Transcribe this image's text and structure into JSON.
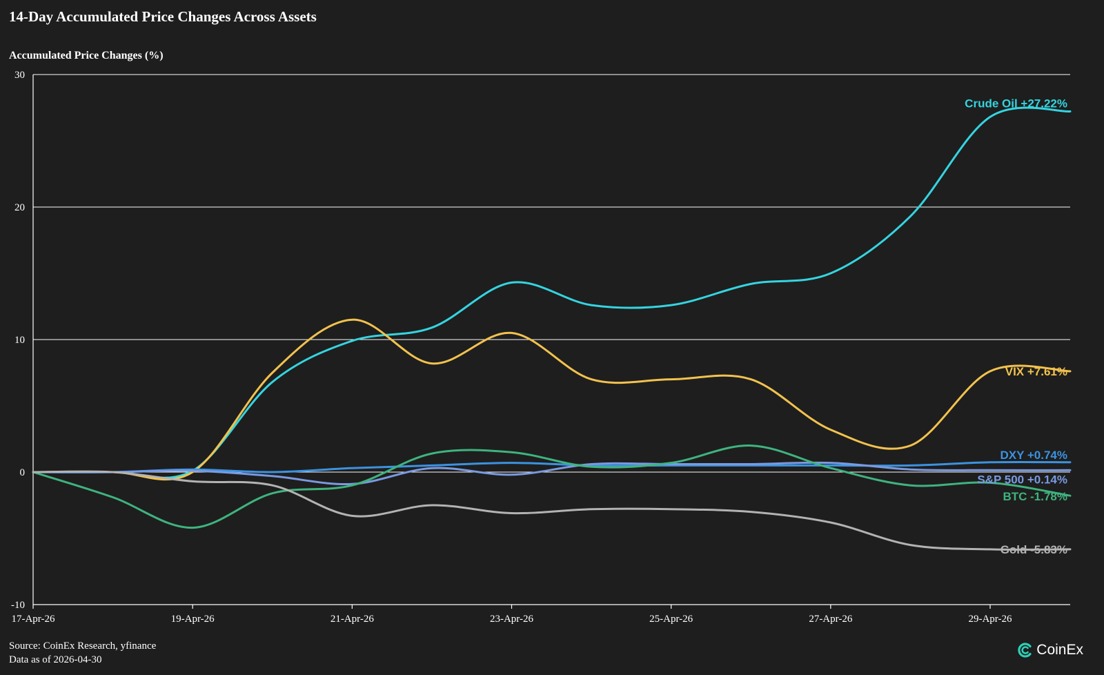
{
  "title": "14-Day Accumulated Price Changes Across Assets",
  "footer": {
    "source": "Source: CoinEx Research, yfinance",
    "asof": "Data as of 2026-04-30"
  },
  "logo": {
    "text": "CoinEx",
    "icon": "coinex-logo-icon",
    "color": "#2ed1b6"
  },
  "chart_data": {
    "type": "line",
    "title": "14-Day Accumulated Price Changes Across Assets",
    "xlabel": "",
    "ylabel": "Accumulated Price Changes (%)",
    "ylim": [
      -10,
      30
    ],
    "yticks": [
      "30",
      "20",
      "10",
      "0",
      "-10"
    ],
    "ytick_values": [
      30,
      20,
      10,
      0,
      -10
    ],
    "xticks": [
      "17-Apr-26",
      "19-Apr-26",
      "21-Apr-26",
      "23-Apr-26",
      "25-Apr-26",
      "27-Apr-26",
      "29-Apr-26"
    ],
    "x": [
      "17-Apr-26",
      "18-Apr-26",
      "19-Apr-26",
      "20-Apr-26",
      "21-Apr-26",
      "22-Apr-26",
      "23-Apr-26",
      "24-Apr-26",
      "25-Apr-26",
      "26-Apr-26",
      "27-Apr-26",
      "28-Apr-26",
      "29-Apr-26",
      "30-Apr-26"
    ],
    "grid": "horizontal",
    "series": [
      {
        "name": "Crude Oil",
        "label": "Crude Oil +27.22%",
        "color": "#35d4e0",
        "values": [
          0,
          0,
          0.1,
          6.8,
          9.9,
          10.9,
          14.3,
          12.6,
          12.6,
          14.2,
          15.0,
          19.3,
          26.8,
          27.22
        ]
      },
      {
        "name": "VIX",
        "label": "VIX +7.61%",
        "color": "#f2c24e",
        "values": [
          0,
          0,
          0,
          7.5,
          11.5,
          8.2,
          10.5,
          7.0,
          7.0,
          7.0,
          3.2,
          2.0,
          7.61,
          7.61
        ]
      },
      {
        "name": "DXY",
        "label": "DXY +0.74%",
        "color": "#3b93e0",
        "values": [
          0,
          0,
          0.2,
          0,
          0.3,
          0.5,
          0.7,
          0.5,
          0.5,
          0.5,
          0.5,
          0.5,
          0.74,
          0.74
        ]
      },
      {
        "name": "S&P 500",
        "label": "S&P 500 +0.14%",
        "color": "#7a9ae0",
        "values": [
          0,
          0,
          0.1,
          -0.3,
          -0.9,
          0.3,
          -0.2,
          0.6,
          0.6,
          0.6,
          0.7,
          0.2,
          0.14,
          0.14
        ]
      },
      {
        "name": "BTC",
        "label": "BTC -1.78%",
        "color": "#3fb37f",
        "values": [
          0,
          -1.9,
          -4.2,
          -1.6,
          -1.0,
          1.4,
          1.5,
          0.4,
          0.7,
          2.0,
          0.3,
          -1.0,
          -0.8,
          -1.78
        ]
      },
      {
        "name": "Gold",
        "label": "Gold -5.83%",
        "color": "#b3b3b3",
        "values": [
          0,
          0,
          -0.7,
          -1.0,
          -3.3,
          -2.5,
          -3.1,
          -2.8,
          -2.8,
          -3.0,
          -3.8,
          -5.5,
          -5.83,
          -5.83
        ]
      }
    ]
  }
}
